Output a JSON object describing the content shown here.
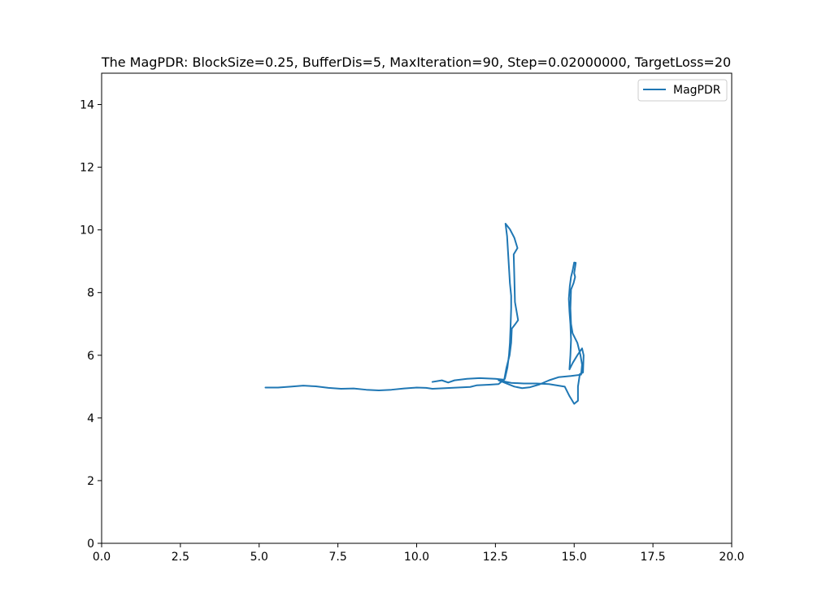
{
  "chart_data": {
    "type": "line",
    "title": "The MagPDR: BlockSize=0.25, BufferDis=5, MaxIteration=90, Step=0.02000000, TargetLoss=20",
    "xlabel": "",
    "ylabel": "",
    "xlim": [
      0,
      20
    ],
    "ylim": [
      0,
      15
    ],
    "xticks": [
      0,
      2.5,
      5,
      7.5,
      10,
      12.5,
      15,
      17.5,
      20
    ],
    "xtick_labels": [
      "0.0",
      "2.5",
      "5.0",
      "7.5",
      "10.0",
      "12.5",
      "15.0",
      "17.5",
      "20.0"
    ],
    "yticks": [
      0,
      2,
      4,
      6,
      8,
      10,
      12,
      14
    ],
    "ytick_labels": [
      "0",
      "2",
      "4",
      "6",
      "8",
      "10",
      "12",
      "14"
    ],
    "grid": false,
    "legend_position": "top-right",
    "colors": {
      "series": "#1f77b4",
      "axes": "#000000",
      "legend_border": "#cccccc"
    },
    "series": [
      {
        "name": "MagPDR",
        "points": [
          [
            5.2,
            4.97
          ],
          [
            5.6,
            4.97
          ],
          [
            6.0,
            5.0
          ],
          [
            6.4,
            5.03
          ],
          [
            6.8,
            5.01
          ],
          [
            7.2,
            4.96
          ],
          [
            7.6,
            4.93
          ],
          [
            8.0,
            4.94
          ],
          [
            8.4,
            4.9
          ],
          [
            8.8,
            4.88
          ],
          [
            9.2,
            4.9
          ],
          [
            9.6,
            4.94
          ],
          [
            10.0,
            4.97
          ],
          [
            10.3,
            4.96
          ],
          [
            10.5,
            4.93
          ],
          [
            10.9,
            4.95
          ],
          [
            11.3,
            4.97
          ],
          [
            11.7,
            4.99
          ],
          [
            11.9,
            5.04
          ],
          [
            12.3,
            5.06
          ],
          [
            12.6,
            5.08
          ],
          [
            12.8,
            5.25
          ],
          [
            12.88,
            5.6
          ],
          [
            12.93,
            6.0
          ],
          [
            12.96,
            6.4
          ],
          [
            12.98,
            6.9
          ],
          [
            13.0,
            7.5
          ],
          [
            13.0,
            7.9
          ],
          [
            12.96,
            8.3
          ],
          [
            12.93,
            8.8
          ],
          [
            12.9,
            9.3
          ],
          [
            12.87,
            9.8
          ],
          [
            12.82,
            10.2
          ],
          [
            12.96,
            10.02
          ],
          [
            13.1,
            9.75
          ],
          [
            13.2,
            9.42
          ],
          [
            13.08,
            9.22
          ],
          [
            13.1,
            8.5
          ],
          [
            13.12,
            7.7
          ],
          [
            13.22,
            7.12
          ],
          [
            13.12,
            6.98
          ],
          [
            13.02,
            6.85
          ],
          [
            13.0,
            6.4
          ],
          [
            12.95,
            6.0
          ],
          [
            12.85,
            5.6
          ],
          [
            12.78,
            5.22
          ],
          [
            12.5,
            5.25
          ],
          [
            12.0,
            5.27
          ],
          [
            11.6,
            5.25
          ],
          [
            11.2,
            5.2
          ],
          [
            11.0,
            5.13
          ],
          [
            10.8,
            5.2
          ],
          [
            10.5,
            5.15
          ]
        ]
      }
    ],
    "series_secondary": [
      [
        12.6,
        5.2
      ],
      [
        13.0,
        5.12
      ],
      [
        13.4,
        5.1
      ],
      [
        13.8,
        5.1
      ],
      [
        14.2,
        5.08
      ],
      [
        14.7,
        5.0
      ],
      [
        14.85,
        4.7
      ],
      [
        15.0,
        4.45
      ],
      [
        15.12,
        4.55
      ],
      [
        15.12,
        5.0
      ],
      [
        15.18,
        5.4
      ],
      [
        15.28,
        5.45
      ],
      [
        15.3,
        6.0
      ],
      [
        15.25,
        6.22
      ],
      [
        15.1,
        6.0
      ],
      [
        14.95,
        5.75
      ],
      [
        14.85,
        5.55
      ],
      [
        14.88,
        6.0
      ],
      [
        14.9,
        6.5
      ],
      [
        14.88,
        7.0
      ],
      [
        14.85,
        7.4
      ],
      [
        14.83,
        7.8
      ],
      [
        14.86,
        8.2
      ],
      [
        14.9,
        8.5
      ],
      [
        14.95,
        8.7
      ],
      [
        15.0,
        8.96
      ],
      [
        15.05,
        8.95
      ],
      [
        15.0,
        8.62
      ],
      [
        15.03,
        8.5
      ],
      [
        14.98,
        8.3
      ],
      [
        14.9,
        8.1
      ],
      [
        14.88,
        7.5
      ],
      [
        14.9,
        7.0
      ],
      [
        14.95,
        6.7
      ],
      [
        15.1,
        6.4
      ],
      [
        15.2,
        6.0
      ],
      [
        15.25,
        5.7
      ],
      [
        15.22,
        5.38
      ],
      [
        14.9,
        5.34
      ],
      [
        14.5,
        5.3
      ],
      [
        14.2,
        5.2
      ],
      [
        13.9,
        5.07
      ],
      [
        13.6,
        4.98
      ],
      [
        13.35,
        4.95
      ],
      [
        13.1,
        5.0
      ],
      [
        12.85,
        5.1
      ],
      [
        12.6,
        5.2
      ]
    ]
  }
}
